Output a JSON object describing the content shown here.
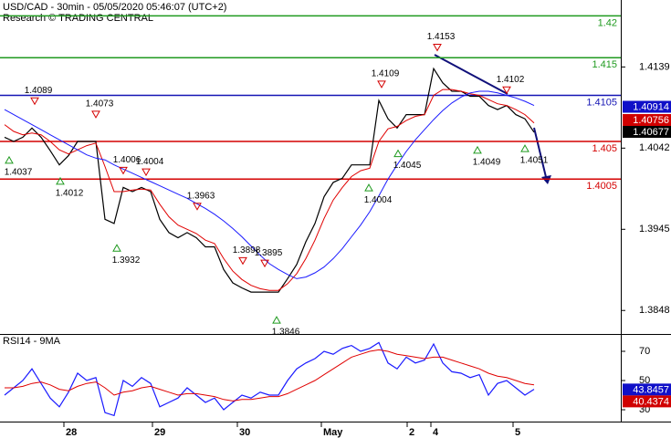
{
  "chart_data": [
    {
      "type": "line",
      "title": "USD/CAD - 30min - 05/05/2020 05:46:07 (UTC+2)",
      "subtitle": "Research © TRADING CENTRAL",
      "x": [
        0,
        1,
        2,
        3,
        4,
        5,
        6,
        7,
        8,
        9,
        10,
        11,
        12,
        13,
        14,
        15,
        16,
        17,
        18,
        19,
        20,
        21,
        22,
        23,
        24,
        25,
        26,
        27,
        28,
        29,
        30,
        31,
        32,
        33,
        34,
        35,
        36,
        37,
        38,
        39,
        40,
        41,
        42,
        43,
        44,
        45,
        46,
        47,
        48,
        49,
        50,
        51,
        52,
        53,
        54,
        55,
        56,
        57,
        58
      ],
      "xlim": [
        -0.5,
        67.5
      ],
      "ylim": [
        1.3821,
        1.4219
      ],
      "yticks": [
        1.3848,
        1.3945,
        1.4042,
        1.4139
      ],
      "series": [
        {
          "color": "#000000",
          "values": [
            1.4055,
            1.405,
            1.4055,
            1.4066,
            1.4055,
            1.4039,
            1.4022,
            1.4033,
            1.405,
            1.405,
            1.405,
            1.3957,
            1.3952,
            1.3995,
            1.399,
            1.3995,
            1.399,
            1.3957,
            1.3941,
            1.3935,
            1.3941,
            1.3935,
            1.3924,
            1.3924,
            1.3897,
            1.3881,
            1.3875,
            1.387,
            1.387,
            1.387,
            1.387,
            1.3886,
            1.3903,
            1.393,
            1.3952,
            1.3984,
            1.4001,
            1.4006,
            1.4022,
            1.4022,
            1.4022,
            1.4099,
            1.4077,
            1.4066,
            1.4082,
            1.4082,
            1.4082,
            1.4137,
            1.412,
            1.411,
            1.411,
            1.4104,
            1.4104,
            1.4093,
            1.4088,
            1.4093,
            1.4082,
            1.4077,
            1.4061
          ]
        },
        {
          "color": "#e00000",
          "values": [
            1.407,
            1.4062,
            1.4058,
            1.406,
            1.4058,
            1.405,
            1.404,
            1.4035,
            1.404,
            1.4045,
            1.4048,
            1.402,
            1.399,
            1.399,
            1.3992,
            1.3993,
            1.3992,
            1.3975,
            1.396,
            1.395,
            1.3945,
            1.394,
            1.3932,
            1.3928,
            1.391,
            1.3895,
            1.3885,
            1.3878,
            1.3874,
            1.3872,
            1.3872,
            1.388,
            1.3892,
            1.391,
            1.3932,
            1.3958,
            1.398,
            1.3995,
            1.4008,
            1.4015,
            1.4018,
            1.405,
            1.4065,
            1.4068,
            1.4075,
            1.408,
            1.4082,
            1.4105,
            1.4112,
            1.4112,
            1.411,
            1.4107,
            1.4105,
            1.41,
            1.4095,
            1.4093,
            1.4088,
            1.4082,
            1.4072
          ]
        },
        {
          "color": "#1a1aff",
          "values": [
            1.4088,
            1.4082,
            1.4076,
            1.407,
            1.4064,
            1.4058,
            1.4052,
            1.4046,
            1.404,
            1.4034,
            1.403,
            1.4028,
            1.4022,
            1.4017,
            1.4012,
            1.4007,
            1.4002,
            1.3997,
            1.3992,
            1.3987,
            1.3982,
            1.3976,
            1.397,
            1.3963,
            1.3955,
            1.3946,
            1.3936,
            1.3925,
            1.3914,
            1.3904,
            1.3897,
            1.3891,
            1.3886,
            1.3888,
            1.3893,
            1.39,
            1.391,
            1.3922,
            1.3936,
            1.395,
            1.3966,
            1.3985,
            1.4005,
            1.4022,
            1.4038,
            1.4052,
            1.4064,
            1.4076,
            1.4087,
            1.4096,
            1.4103,
            1.4108,
            1.411,
            1.411,
            1.4108,
            1.4105,
            1.4102,
            1.4098,
            1.4093
          ]
        }
      ],
      "levels": [
        {
          "value": 1.42,
          "color": "#1f9a1f"
        },
        {
          "value": 1.415,
          "color": "#1f9a1f"
        },
        {
          "value": 1.4105,
          "color": "#1414b4"
        },
        {
          "value": 1.405,
          "color": "#d40000"
        },
        {
          "value": 1.4005,
          "color": "#d40000"
        }
      ],
      "highs": [
        {
          "x": 3.3,
          "value": 1.4089
        },
        {
          "x": 10,
          "value": 1.4073
        },
        {
          "x": 13,
          "value": 1.4006
        },
        {
          "x": 15.5,
          "value": 1.4004
        },
        {
          "x": 21.1,
          "value": 1.3963
        },
        {
          "x": 26.1,
          "value": 1.3898
        },
        {
          "x": 28.5,
          "value": 1.3895
        },
        {
          "x": 41.3,
          "value": 1.4109
        },
        {
          "x": 47.4,
          "value": 1.4153
        },
        {
          "x": 55,
          "value": 1.4102
        }
      ],
      "lows": [
        {
          "x": 0.5,
          "value": 1.4037
        },
        {
          "x": 6.1,
          "value": 1.4012
        },
        {
          "x": 12.3,
          "value": 1.3932
        },
        {
          "x": 29.8,
          "value": 1.3846
        },
        {
          "x": 39.9,
          "value": 1.4004
        },
        {
          "x": 43.1,
          "value": 1.4045
        },
        {
          "x": 51.8,
          "value": 1.4049
        },
        {
          "x": 57,
          "value": 1.4051
        }
      ],
      "price_tags": [
        {
          "value": 1.40914,
          "color": "#1010c8"
        },
        {
          "value": 1.40756,
          "color": "#d00000"
        },
        {
          "value": 1.40677,
          "color": "#000000"
        }
      ]
    },
    {
      "type": "line",
      "title": "RSI14 - 9MA",
      "x": [
        0,
        1,
        2,
        3,
        4,
        5,
        6,
        7,
        8,
        9,
        10,
        11,
        12,
        13,
        14,
        15,
        16,
        17,
        18,
        19,
        20,
        21,
        22,
        23,
        24,
        25,
        26,
        27,
        28,
        29,
        30,
        31,
        32,
        33,
        34,
        35,
        36,
        37,
        38,
        39,
        40,
        41,
        42,
        43,
        44,
        45,
        46,
        47,
        48,
        49,
        50,
        51,
        52,
        53,
        54,
        55,
        56,
        57,
        58
      ],
      "xlim": [
        -0.5,
        67.5
      ],
      "xticks": [
        {
          "value": 6.5,
          "label": "28"
        },
        {
          "value": 16.2,
          "label": "29"
        },
        {
          "value": 25.5,
          "label": "30"
        },
        {
          "value": 34.7,
          "label": "May"
        },
        {
          "value": 44.1,
          "label": "2"
        },
        {
          "value": 46.7,
          "label": "4"
        },
        {
          "value": 55.7,
          "label": "5"
        }
      ],
      "ylim": [
        21.9,
        81.25
      ],
      "yticks": [
        30,
        50,
        70
      ],
      "series": [
        {
          "color": "#1a1aff",
          "values": [
            40,
            45,
            50,
            58,
            48,
            38,
            32,
            42,
            55,
            50,
            52,
            28,
            26,
            50,
            46,
            52,
            48,
            32,
            35,
            38,
            45,
            40,
            35,
            38,
            30,
            35,
            40,
            38,
            42,
            40,
            40,
            50,
            58,
            62,
            65,
            70,
            68,
            72,
            74,
            70,
            72,
            76,
            62,
            58,
            66,
            62,
            64,
            75,
            62,
            56,
            55,
            52,
            54,
            40,
            48,
            50,
            45,
            40,
            44
          ]
        },
        {
          "color": "#e00000",
          "values": [
            45,
            45,
            46,
            48,
            49,
            47,
            44,
            43,
            46,
            48,
            49,
            45,
            40,
            42,
            43,
            45,
            46,
            44,
            42,
            40,
            41,
            41,
            40,
            39,
            37,
            36,
            37,
            37,
            38,
            39,
            39,
            41,
            44,
            47,
            50,
            54,
            58,
            62,
            66,
            68,
            70,
            71,
            70,
            68,
            67,
            66,
            65,
            66,
            66,
            64,
            62,
            60,
            58,
            55,
            53,
            52,
            50,
            48,
            47
          ]
        }
      ],
      "value_tags": [
        {
          "value": 43.8457,
          "color": "#1010c8"
        },
        {
          "value": 40.4374,
          "color": "#d00000"
        }
      ]
    }
  ]
}
